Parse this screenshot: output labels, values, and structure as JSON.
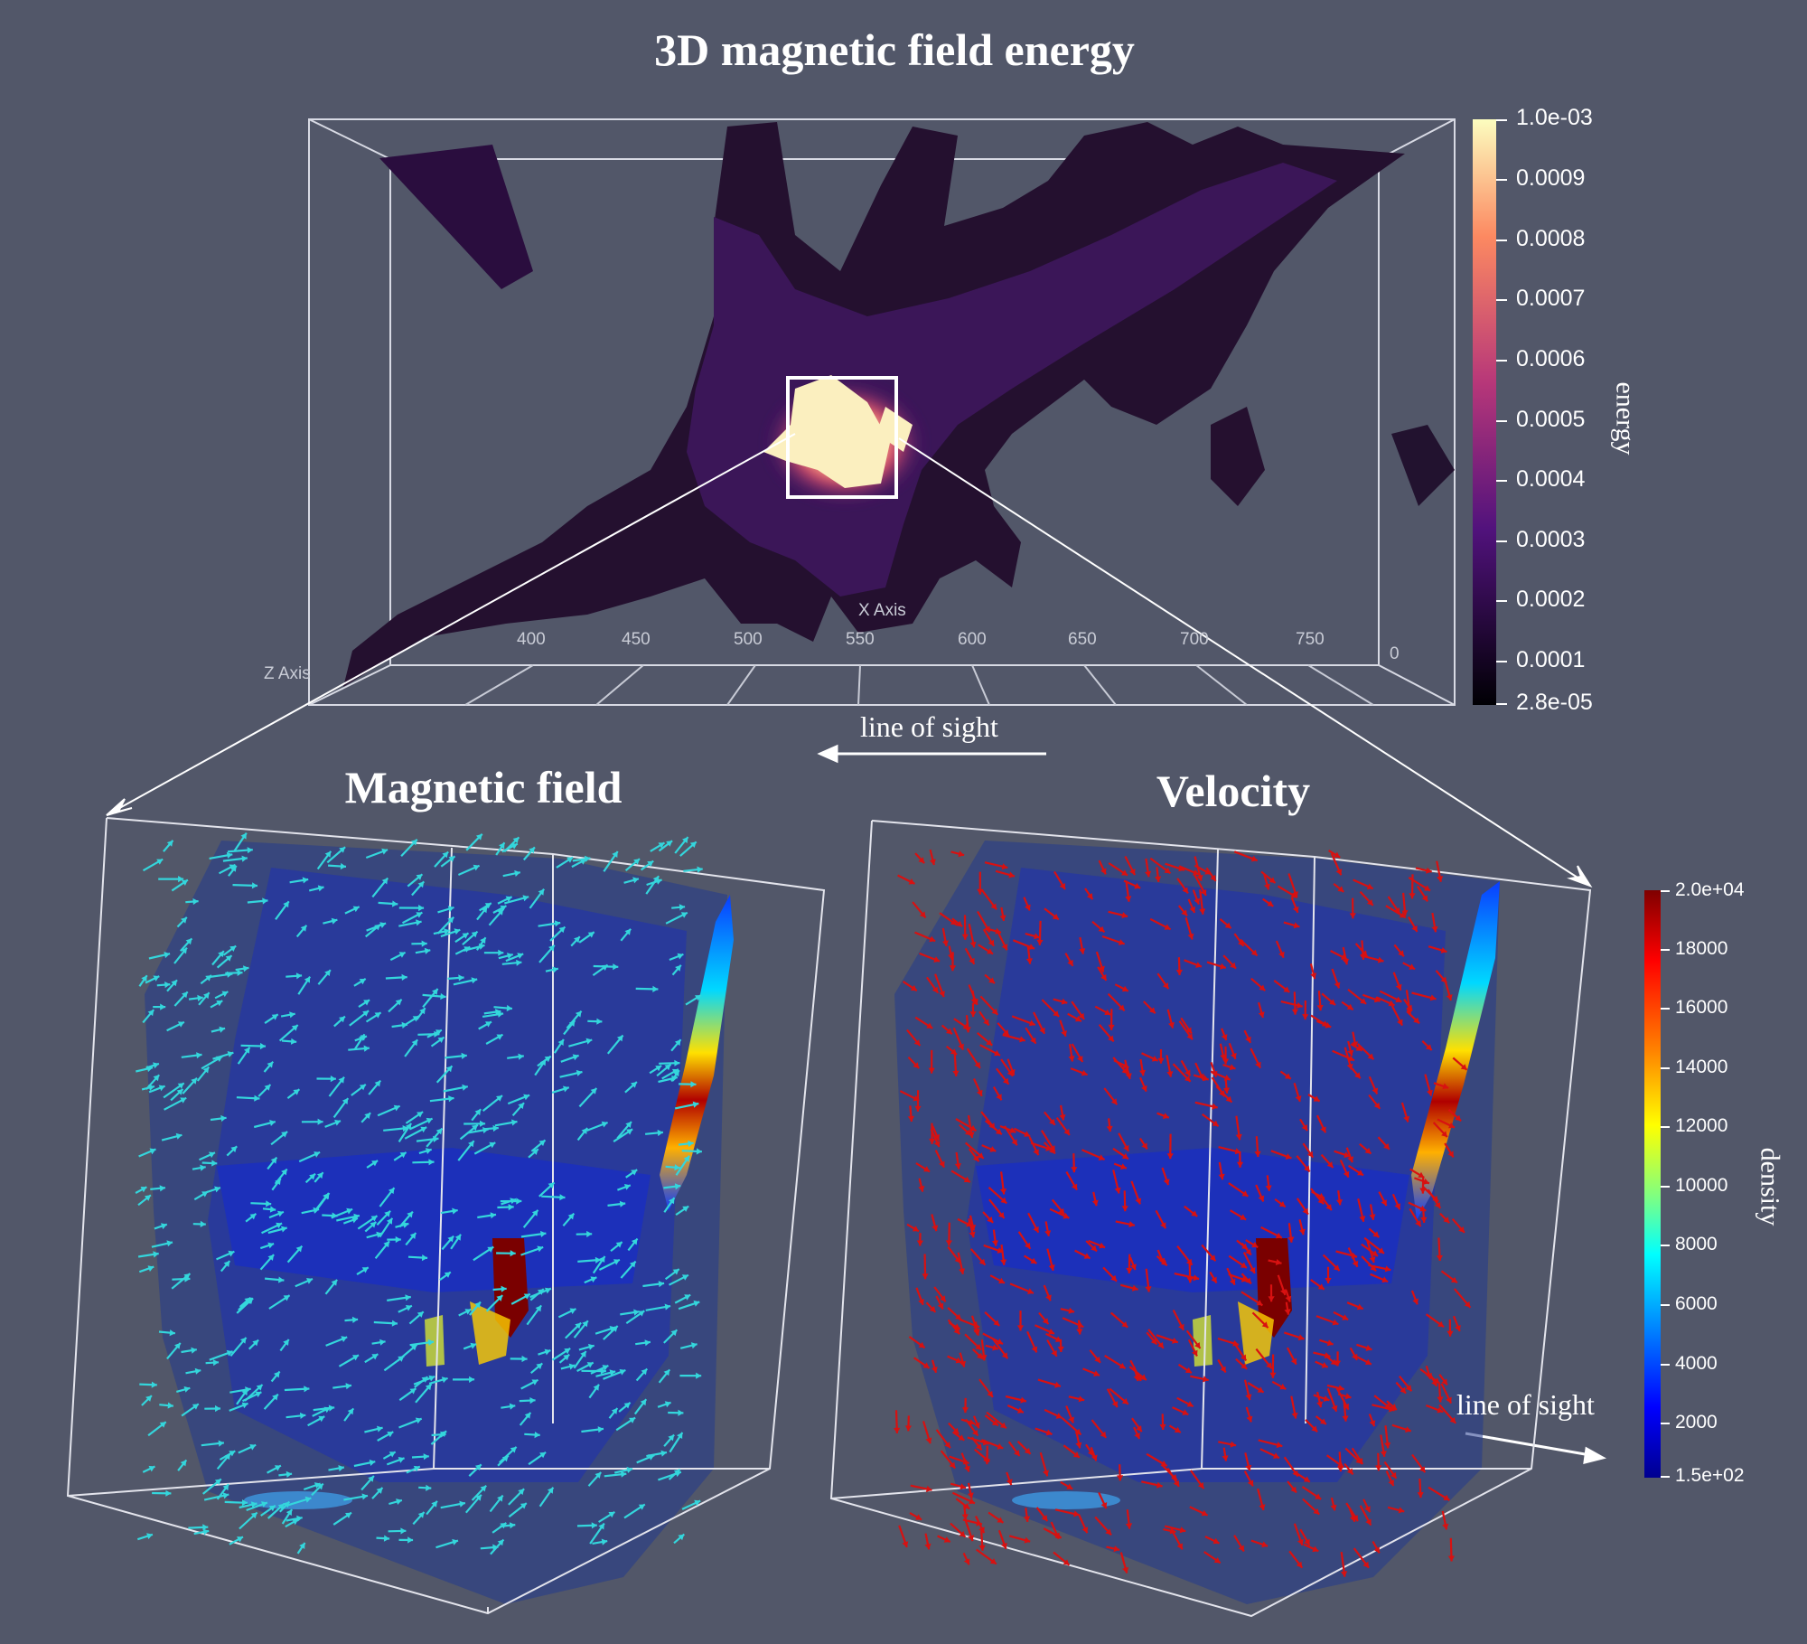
{
  "titles": {
    "main": "3D magnetic field energy",
    "magnetic": "Magnetic field",
    "velocity": "Velocity"
  },
  "line_of_sight": {
    "top": "line of sight",
    "bottom": "line of sight"
  },
  "axes": {
    "x_label": "X Axis",
    "z_label": "Z Axis",
    "x_ticks": [
      "400",
      "450",
      "500",
      "550",
      "600",
      "650",
      "700",
      "750"
    ],
    "zero_tick": "0"
  },
  "energy_colorbar": {
    "title": "energy",
    "ticks": [
      "1.0e-03",
      "0.0009",
      "0.0008",
      "0.0007",
      "0.0006",
      "0.0005",
      "0.0004",
      "0.0003",
      "0.0002",
      "0.0001",
      "2.8e-05"
    ],
    "colors": [
      "#fcfdbf",
      "#fc8961",
      "#b73779",
      "#51127c",
      "#000004"
    ]
  },
  "density_colorbar": {
    "title": "density",
    "ticks": [
      "2.0e+04",
      "18000",
      "16000",
      "14000",
      "12000",
      "10000",
      "8000",
      "6000",
      "4000",
      "2000",
      "1.5e+02"
    ],
    "colors": [
      "#7f0000",
      "#ff0000",
      "#ff8000",
      "#ffff00",
      "#80ff80",
      "#00ffff",
      "#0080ff",
      "#0000ff",
      "#00008f"
    ]
  },
  "vector_colors": {
    "magnetic": "#34d6dc",
    "velocity": "#d81111"
  }
}
